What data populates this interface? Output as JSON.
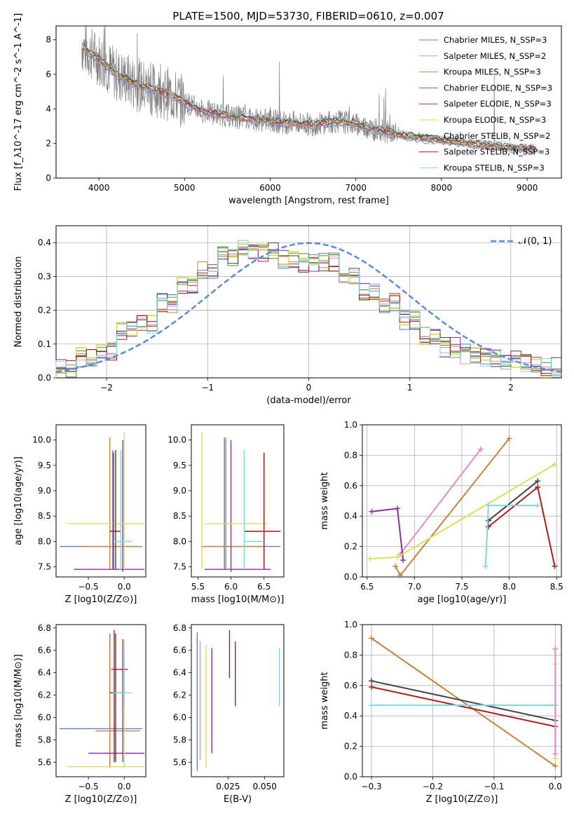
{
  "figure": {
    "title": "PLATE=1500, MJD=53730, FIBERID=0610, z=0.007"
  },
  "colors": {
    "chabrier_miles": "#5b7fd1",
    "salpeter_miles": "#e78ac3",
    "kroupa_miles": "#c9823b",
    "chabrier_elodie": "#3f8f3f",
    "salpeter_elodie": "#8e2ea6",
    "kroupa_elodie": "#d9e05a",
    "chabrier_stelib": "#444444",
    "salpeter_stelib": "#b01c1c",
    "kroupa_stelib": "#7fd8e0",
    "data": "#808080",
    "gauss": "#5b8bd6"
  },
  "chart_data": [
    {
      "id": "spectrum",
      "type": "line",
      "xlabel": "wavelength [Angstrom, rest frame]",
      "ylabel": "Flux [f_λ10^-17 erg cm^-2 s^-1 A^-1]",
      "xlim": [
        3500,
        9400
      ],
      "ylim": [
        0,
        8.8
      ],
      "xticks": [
        "4000",
        "5000",
        "6000",
        "7000",
        "8000",
        "9000"
      ],
      "yticks": [
        "0",
        "2",
        "4",
        "6",
        "8"
      ],
      "legend_position": "top-right",
      "legend": [
        "Chabrier MILES, N_SSP=3",
        "Salpeter MILES, N_SSP=2",
        "Kroupa MILES, N_SSP=3",
        "Chabrier ELODIE, N_SSP=3",
        "Salpeter ELODIE, N_SSP=3",
        "Kroupa ELODIE, N_SSP=3",
        "Chabrier STELIB, N_SSP=2",
        "Salpeter STELIB, N_SSP=3",
        "Kroupa STELIB, N_SSP=3"
      ],
      "continuum": {
        "x": [
          3800,
          4000,
          4200,
          4500,
          4800,
          5000,
          5200,
          5500,
          6000,
          6500,
          6800,
          7000,
          7500,
          8000,
          8500,
          9000,
          9100
        ],
        "y": [
          7.6,
          6.9,
          6.0,
          5.3,
          4.9,
          4.4,
          3.9,
          3.6,
          3.3,
          3.1,
          3.3,
          3.1,
          2.5,
          2.2,
          1.9,
          1.7,
          1.7
        ]
      }
    },
    {
      "id": "residuals",
      "type": "line",
      "xlabel": "(data-model)/error",
      "ylabel": "Normed distribution",
      "xlim": [
        -2.5,
        2.5
      ],
      "ylim": [
        0,
        0.45
      ],
      "xticks": [
        "−2",
        "−1",
        "0",
        "1",
        "2"
      ],
      "yticks": [
        "0.0",
        "0.1",
        "0.2",
        "0.3",
        "0.4"
      ],
      "grid": true,
      "legend_position": "top-right",
      "gauss_label": "𝒩(0, 1)",
      "hist_x": [
        -2.5,
        -2.3,
        -2.1,
        -1.9,
        -1.7,
        -1.5,
        -1.3,
        -1.1,
        -0.9,
        -0.7,
        -0.5,
        -0.3,
        -0.1,
        0.1,
        0.3,
        0.5,
        0.7,
        0.9,
        1.1,
        1.3,
        1.5,
        1.7,
        1.9,
        2.1,
        2.3,
        2.5
      ],
      "hist_y": [
        0.03,
        0.06,
        0.08,
        0.14,
        0.16,
        0.22,
        0.27,
        0.32,
        0.36,
        0.38,
        0.37,
        0.35,
        0.34,
        0.34,
        0.3,
        0.26,
        0.22,
        0.17,
        0.12,
        0.09,
        0.07,
        0.06,
        0.05,
        0.04,
        0.03
      ]
    },
    {
      "id": "Z-age",
      "type": "scatter",
      "xlabel": "Z [log10(Z/Z⊙)]",
      "ylabel": "age [log10(age/yr)]",
      "xlim": [
        -0.95,
        0.3
      ],
      "ylim": [
        7.3,
        10.3
      ],
      "xticks": [
        "−0.5",
        "0.0"
      ],
      "yticks": [
        "7.5",
        "8.0",
        "8.5",
        "9.0",
        "9.5",
        "10.0"
      ]
    },
    {
      "id": "mass-age",
      "type": "scatter",
      "xlabel": "mass [log10(M/M⊙)]",
      "xlim": [
        5.4,
        6.8
      ],
      "ylim": [
        7.3,
        10.3
      ],
      "xticks": [
        "5.5",
        "6.0",
        "6.5"
      ],
      "yticks": [
        "7.5",
        "8.0",
        "8.5",
        "9.0",
        "9.5",
        "10.0"
      ]
    },
    {
      "id": "age-weight",
      "type": "line",
      "xlabel": "age [log10(age/yr)]",
      "ylabel": "mass weight",
      "xlim": [
        6.45,
        8.55
      ],
      "ylim": [
        0,
        1
      ],
      "xticks": [
        "6.5",
        "7.0",
        "7.5",
        "8.0",
        "8.5"
      ],
      "yticks": [
        "0.0",
        "0.2",
        "0.4",
        "0.6",
        "0.8",
        "1.0"
      ],
      "grid": true,
      "series": [
        {
          "key": "salpeter_miles",
          "x": [
            6.85,
            7.7
          ],
          "y": [
            0.15,
            0.84
          ]
        },
        {
          "key": "kroupa_miles",
          "x": [
            6.8,
            6.85,
            8.0
          ],
          "y": [
            0.07,
            0.01,
            0.91
          ]
        },
        {
          "key": "salpeter_elodie",
          "x": [
            6.55,
            6.82,
            6.88
          ],
          "y": [
            0.43,
            0.45,
            0.11
          ]
        },
        {
          "key": "kroupa_elodie",
          "x": [
            6.53,
            6.82,
            8.48
          ],
          "y": [
            0.12,
            0.13,
            0.74
          ]
        },
        {
          "key": "chabrier_stelib",
          "x": [
            7.78,
            8.3
          ],
          "y": [
            0.37,
            0.63
          ]
        },
        {
          "key": "salpeter_stelib",
          "x": [
            7.78,
            8.3,
            8.48
          ],
          "y": [
            0.33,
            0.59,
            0.07
          ]
        },
        {
          "key": "kroupa_stelib",
          "x": [
            7.75,
            7.78,
            8.3
          ],
          "y": [
            0.07,
            0.47,
            0.47
          ]
        }
      ]
    },
    {
      "id": "Z-mass",
      "type": "scatter",
      "xlabel": "Z [log10(Z/Z⊙)]",
      "ylabel": "mass [log10(M/M⊙)]",
      "xlim": [
        -0.95,
        0.3
      ],
      "ylim": [
        5.47,
        6.83
      ],
      "xticks": [
        "−0.5",
        "0.0"
      ],
      "yticks": [
        "5.6",
        "5.8",
        "6.0",
        "6.2",
        "6.4",
        "6.6",
        "6.8"
      ]
    },
    {
      "id": "ebv-mass",
      "type": "scatter",
      "xlabel": "E(B-V)",
      "xlim": [
        0,
        0.063
      ],
      "ylim": [
        5.47,
        6.83
      ],
      "xticks": [
        "0.025",
        "0.050"
      ],
      "yticks": [
        "5.6",
        "5.8",
        "6.0",
        "6.2",
        "6.4",
        "6.6",
        "6.8"
      ]
    },
    {
      "id": "Z-weight",
      "type": "line",
      "xlabel": "Z [log10(Z/Z⊙)]",
      "ylabel": "mass weight",
      "xlim": [
        -0.315,
        0.01
      ],
      "ylim": [
        0,
        1
      ],
      "xticks": [
        "−0.3",
        "−0.2",
        "−0.1",
        "0.0"
      ],
      "yticks": [
        "0.0",
        "0.2",
        "0.4",
        "0.6",
        "0.8",
        "1.0"
      ],
      "grid": true,
      "series": [
        {
          "key": "kroupa_miles",
          "x": [
            -0.3,
            0.0
          ],
          "y": [
            0.91,
            0.07
          ]
        },
        {
          "key": "chabrier_stelib",
          "x": [
            -0.3,
            0.0
          ],
          "y": [
            0.63,
            0.37
          ]
        },
        {
          "key": "salpeter_stelib",
          "x": [
            -0.3,
            0.0
          ],
          "y": [
            0.59,
            0.33
          ]
        },
        {
          "key": "kroupa_stelib",
          "x": [
            -0.3,
            0.0
          ],
          "y": [
            0.47,
            0.47
          ]
        },
        {
          "key": "kroupa_elodie",
          "x": [
            0.0,
            0.0
          ],
          "y": [
            0.12,
            0.74
          ]
        },
        {
          "key": "salpeter_miles",
          "x": [
            0.0,
            0.0
          ],
          "y": [
            0.15,
            0.84
          ]
        }
      ]
    }
  ]
}
